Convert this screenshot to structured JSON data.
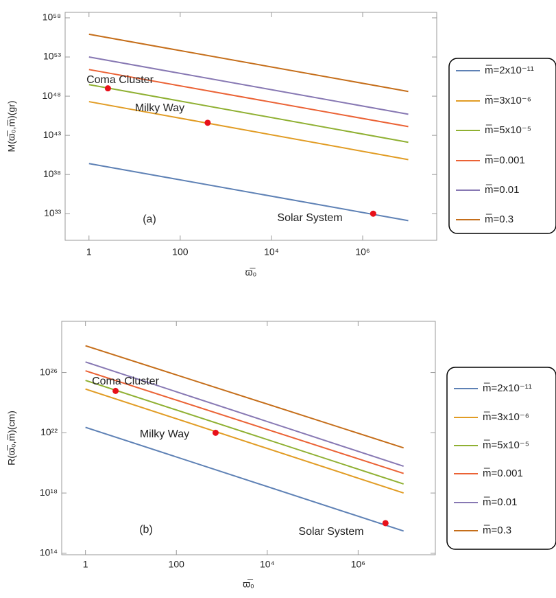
{
  "chart_data": [
    {
      "type": "line",
      "log_x": true,
      "log_y": true,
      "xlabel": "ϖ̅₀",
      "ylabel": "M(ϖ̅₀,m̅)(gr)",
      "xlim": [
        0.3,
        42000000
      ],
      "ylim": [
        4e+29,
        5e+58
      ],
      "xticks": [
        1,
        100,
        {
          "value": 10000,
          "label": "10⁴"
        },
        {
          "value": 1000000,
          "label": "10⁶"
        }
      ],
      "yticks": [
        {
          "value": 1e+33,
          "label": "10³³"
        },
        {
          "value": 1e+38,
          "label": "10³⁸"
        },
        {
          "value": 1e+43,
          "label": "10⁴³"
        },
        {
          "value": 1e+48,
          "label": "10⁴⁸"
        },
        {
          "value": 1e+53,
          "label": "10⁵³"
        },
        {
          "value": 1e+58,
          "label": "10⁵⁸"
        }
      ],
      "x": [
        1,
        10000000
      ],
      "series": [
        {
          "name": "m̅=2x10⁻¹¹",
          "color": "#5e81b5",
          "values": [
            2.5e+39,
            1.3e+32
          ]
        },
        {
          "name": "m̅=3x10⁻⁶",
          "color": "#e19c24",
          "values": [
            2e+47,
            8e+39
          ]
        },
        {
          "name": "m̅=5x10⁻⁵",
          "color": "#8fb032",
          "values": [
            3e+49,
            1.3e+42
          ]
        },
        {
          "name": "m̅=0.001",
          "color": "#eb6235",
          "values": [
            2.5e+51,
            1.3e+44
          ]
        },
        {
          "name": "m̅=0.01",
          "color": "#8778b3",
          "values": [
            1e+53,
            5e+45
          ]
        },
        {
          "name": "m̅=0.3",
          "color": "#c56e1a",
          "values": [
            8e+55,
            4e+48
          ]
        }
      ],
      "points": [
        {
          "label": "Coma Cluster",
          "x": 2.6,
          "y": 1e+49,
          "label_color": "#2ea82e"
        },
        {
          "label": "Milky Way",
          "x": 400,
          "y": 4e+44,
          "label_color": "#f0901e"
        },
        {
          "label": "Solar System",
          "x": 1700000,
          "y": 1e+33,
          "label_color": "#1414d2"
        }
      ],
      "point_color": "#e8101a",
      "panel_label": "(a)"
    },
    {
      "type": "line",
      "log_x": true,
      "log_y": true,
      "xlabel": "ϖ̅₀",
      "ylabel": "R(ϖ̅₀,m̅)(cm)",
      "xlim": [
        0.3,
        50000000
      ],
      "ylim": [
        80000000000000.0,
        2.5e+29
      ],
      "xticks": [
        1,
        100,
        {
          "value": 10000,
          "label": "10⁴"
        },
        {
          "value": 1000000,
          "label": "10⁶"
        }
      ],
      "yticks": [
        {
          "value": 100000000000000.0,
          "label": "10¹⁴"
        },
        {
          "value": 1e+18,
          "label": "10¹⁸"
        },
        {
          "value": 1e+22,
          "label": "10²²"
        },
        {
          "value": 1e+26,
          "label": "10²⁶"
        }
      ],
      "x": [
        1,
        10000000
      ],
      "series": [
        {
          "name": "m̅=2x10⁻¹¹",
          "color": "#5e81b5",
          "values": [
            2.3e+22,
            3000000000000000.0
          ]
        },
        {
          "name": "m̅=3x10⁻⁶",
          "color": "#e19c24",
          "values": [
            8e+24,
            1e+18
          ]
        },
        {
          "name": "m̅=5x10⁻⁵",
          "color": "#8fb032",
          "values": [
            3e+25,
            4e+18
          ]
        },
        {
          "name": "m̅=0.001",
          "color": "#eb6235",
          "values": [
            1.3e+26,
            2e+19
          ]
        },
        {
          "name": "m̅=0.01",
          "color": "#8778b3",
          "values": [
            5e+26,
            6e+19
          ]
        },
        {
          "name": "m̅=0.3",
          "color": "#c56e1a",
          "values": [
            6e+27,
            1e+21
          ]
        }
      ],
      "points": [
        {
          "label": "Coma Cluster",
          "x": 4.6,
          "y": 6e+24,
          "label_color": "#2ea82e"
        },
        {
          "label": "Milky Way",
          "x": 730,
          "y": 1e+22,
          "label_color": "#f0901e"
        },
        {
          "label": "Solar System",
          "x": 4000000,
          "y": 1e+16,
          "label_color": "#1414d2"
        }
      ],
      "point_color": "#e8101a",
      "panel_label": "(b)"
    }
  ]
}
